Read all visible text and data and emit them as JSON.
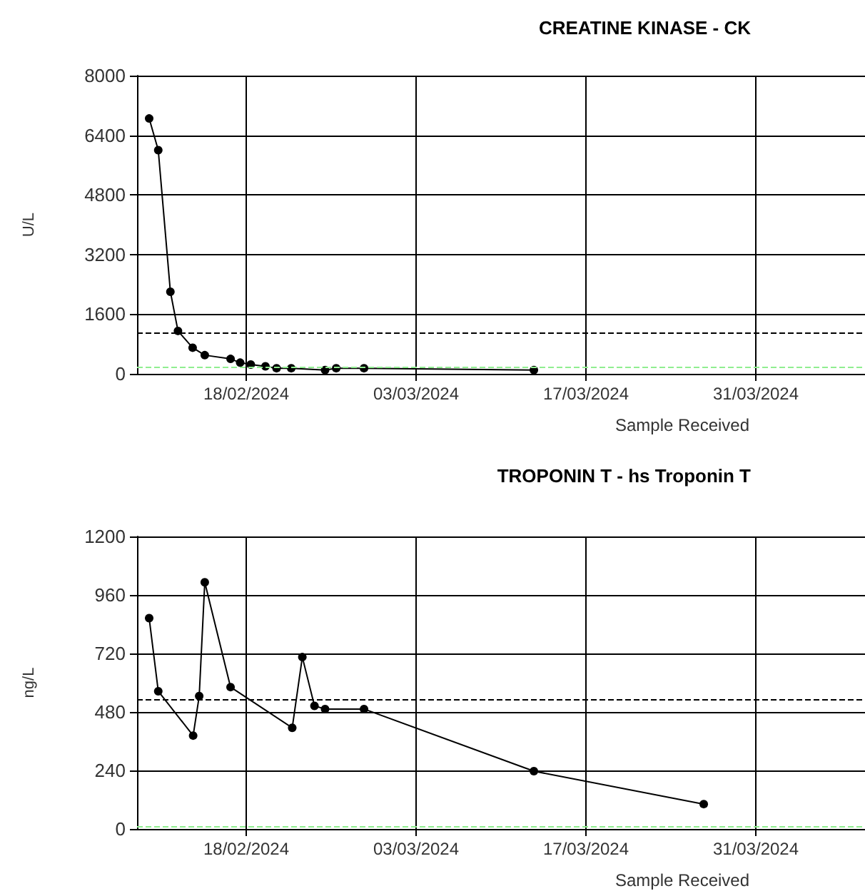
{
  "chart_data": [
    {
      "type": "line",
      "title": "CREATINE KINASE - CK",
      "xlabel": "Sample Received",
      "ylabel": "U/L",
      "grid": true,
      "marker": "circle",
      "line_style": "solid",
      "xlim": [
        "2024-02-09",
        "2024-04-09"
      ],
      "xticks": [
        {
          "value": "2024-02-18",
          "label": "18/02/2024"
        },
        {
          "value": "2024-03-03",
          "label": "03/03/2024"
        },
        {
          "value": "2024-03-17",
          "label": "17/03/2024"
        },
        {
          "value": "2024-03-31",
          "label": "31/03/2024"
        }
      ],
      "ylim": [
        0,
        8000
      ],
      "yticks": [
        0,
        1600,
        3200,
        4800,
        6400,
        8000
      ],
      "series": [
        {
          "color": "#000000",
          "x": [
            "2024-02-10",
            "2024-02-10T18:00",
            "2024-02-11T18:00",
            "2024-02-12T09:00",
            "2024-02-13T14:00",
            "2024-02-14T14:00",
            "2024-02-16T17:00",
            "2024-02-17T12:00",
            "2024-02-18T09:00",
            "2024-02-19T14:00",
            "2024-02-20T12:00",
            "2024-02-21T17:00",
            "2024-02-24T12:00",
            "2024-02-25T10:00",
            "2024-02-27T17:00",
            "2024-03-12T17:00"
          ],
          "values": [
            6850,
            6000,
            2200,
            1150,
            700,
            500,
            400,
            300,
            250,
            200,
            150,
            150,
            100,
            150,
            150,
            100
          ]
        }
      ],
      "ref_lines": [
        {
          "axis": "y",
          "value": 1090,
          "color": "#000000",
          "line_style": "dashed"
        },
        {
          "axis": "y",
          "value": 190,
          "color": "#90ee90",
          "line_style": "dashed"
        }
      ]
    },
    {
      "type": "line",
      "title": "TROPONIN T - hs Troponin T",
      "xlabel": "Sample Received",
      "ylabel": "ng/L",
      "grid": true,
      "marker": "circle",
      "line_style": "solid",
      "xlim": [
        "2024-02-09",
        "2024-04-09"
      ],
      "xticks": [
        {
          "value": "2024-02-18",
          "label": "18/02/2024"
        },
        {
          "value": "2024-03-03",
          "label": "03/03/2024"
        },
        {
          "value": "2024-03-17",
          "label": "17/03/2024"
        },
        {
          "value": "2024-03-31",
          "label": "31/03/2024"
        }
      ],
      "ylim": [
        0,
        1200
      ],
      "yticks": [
        0,
        240,
        480,
        720,
        960,
        1200
      ],
      "series": [
        {
          "color": "#000000",
          "x": [
            "2024-02-10",
            "2024-02-10T18:00",
            "2024-02-13T15:00",
            "2024-02-14T03:00",
            "2024-02-14T14:00",
            "2024-02-16T17:00",
            "2024-02-21T19:00",
            "2024-02-22T15:00",
            "2024-02-23T15:00",
            "2024-02-24T12:00",
            "2024-02-27T17:00",
            "2024-03-12T17:00",
            "2024-03-26T17:00"
          ],
          "values": [
            865,
            565,
            383,
            545,
            1012,
            582,
            415,
            705,
            505,
            492,
            492,
            237,
            102
          ]
        }
      ],
      "ref_lines": [
        {
          "axis": "y",
          "value": 530,
          "color": "#000000",
          "line_style": "dashed"
        },
        {
          "axis": "y",
          "value": 10,
          "color": "#90ee90",
          "line_style": "dashed"
        }
      ]
    }
  ]
}
